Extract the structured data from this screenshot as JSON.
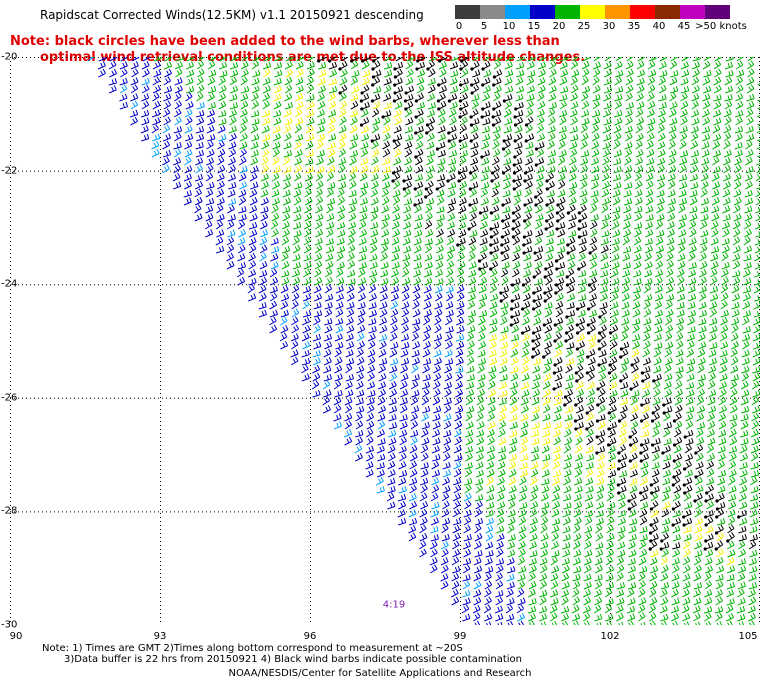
{
  "title": "Rapidscat Corrected Winds(12.5KM) v1.1 20150921 descending",
  "note": {
    "line1": "Note: black circles have been added to the wind barbs, wherever less than",
    "line2": "optimal wind retrieval conditions are met due to the ISS altitude changes."
  },
  "colorbar": {
    "labels": [
      "0",
      "5",
      "10",
      "15",
      "20",
      "25",
      "30",
      "35",
      "40",
      "45",
      ">50 knots"
    ],
    "colors": [
      "#3c3c3c",
      "#8a8a8a",
      "#00a0ff",
      "#0000c8",
      "#00b400",
      "#ffff00",
      "#ff9600",
      "#ff0000",
      "#8b2a00",
      "#c000c0",
      "#60007a"
    ]
  },
  "axes": {
    "lat_labels": [
      "-20",
      "-22",
      "-24",
      "-26",
      "-28",
      "-30"
    ],
    "lat_values": [
      -20,
      -22,
      -24,
      -26,
      -28,
      -30
    ],
    "lon_labels": [
      "90",
      "93",
      "96",
      "99",
      "102",
      "105"
    ],
    "lon_values": [
      90,
      93,
      96,
      99,
      102,
      105
    ],
    "lon_range": [
      90,
      105
    ],
    "lat_range": [
      -20,
      -30
    ]
  },
  "swath_time": "4:19",
  "footnote": {
    "line1": "Note: 1) Times are GMT 2)Times along bottom correspond to measurement at ~20S",
    "line2": "3)Data buffer is 22 hrs from 20150921 4) Black wind barbs indicate possible contamination"
  },
  "credit": "NOAA/NESDIS/Center for Satellite Applications and Research"
}
